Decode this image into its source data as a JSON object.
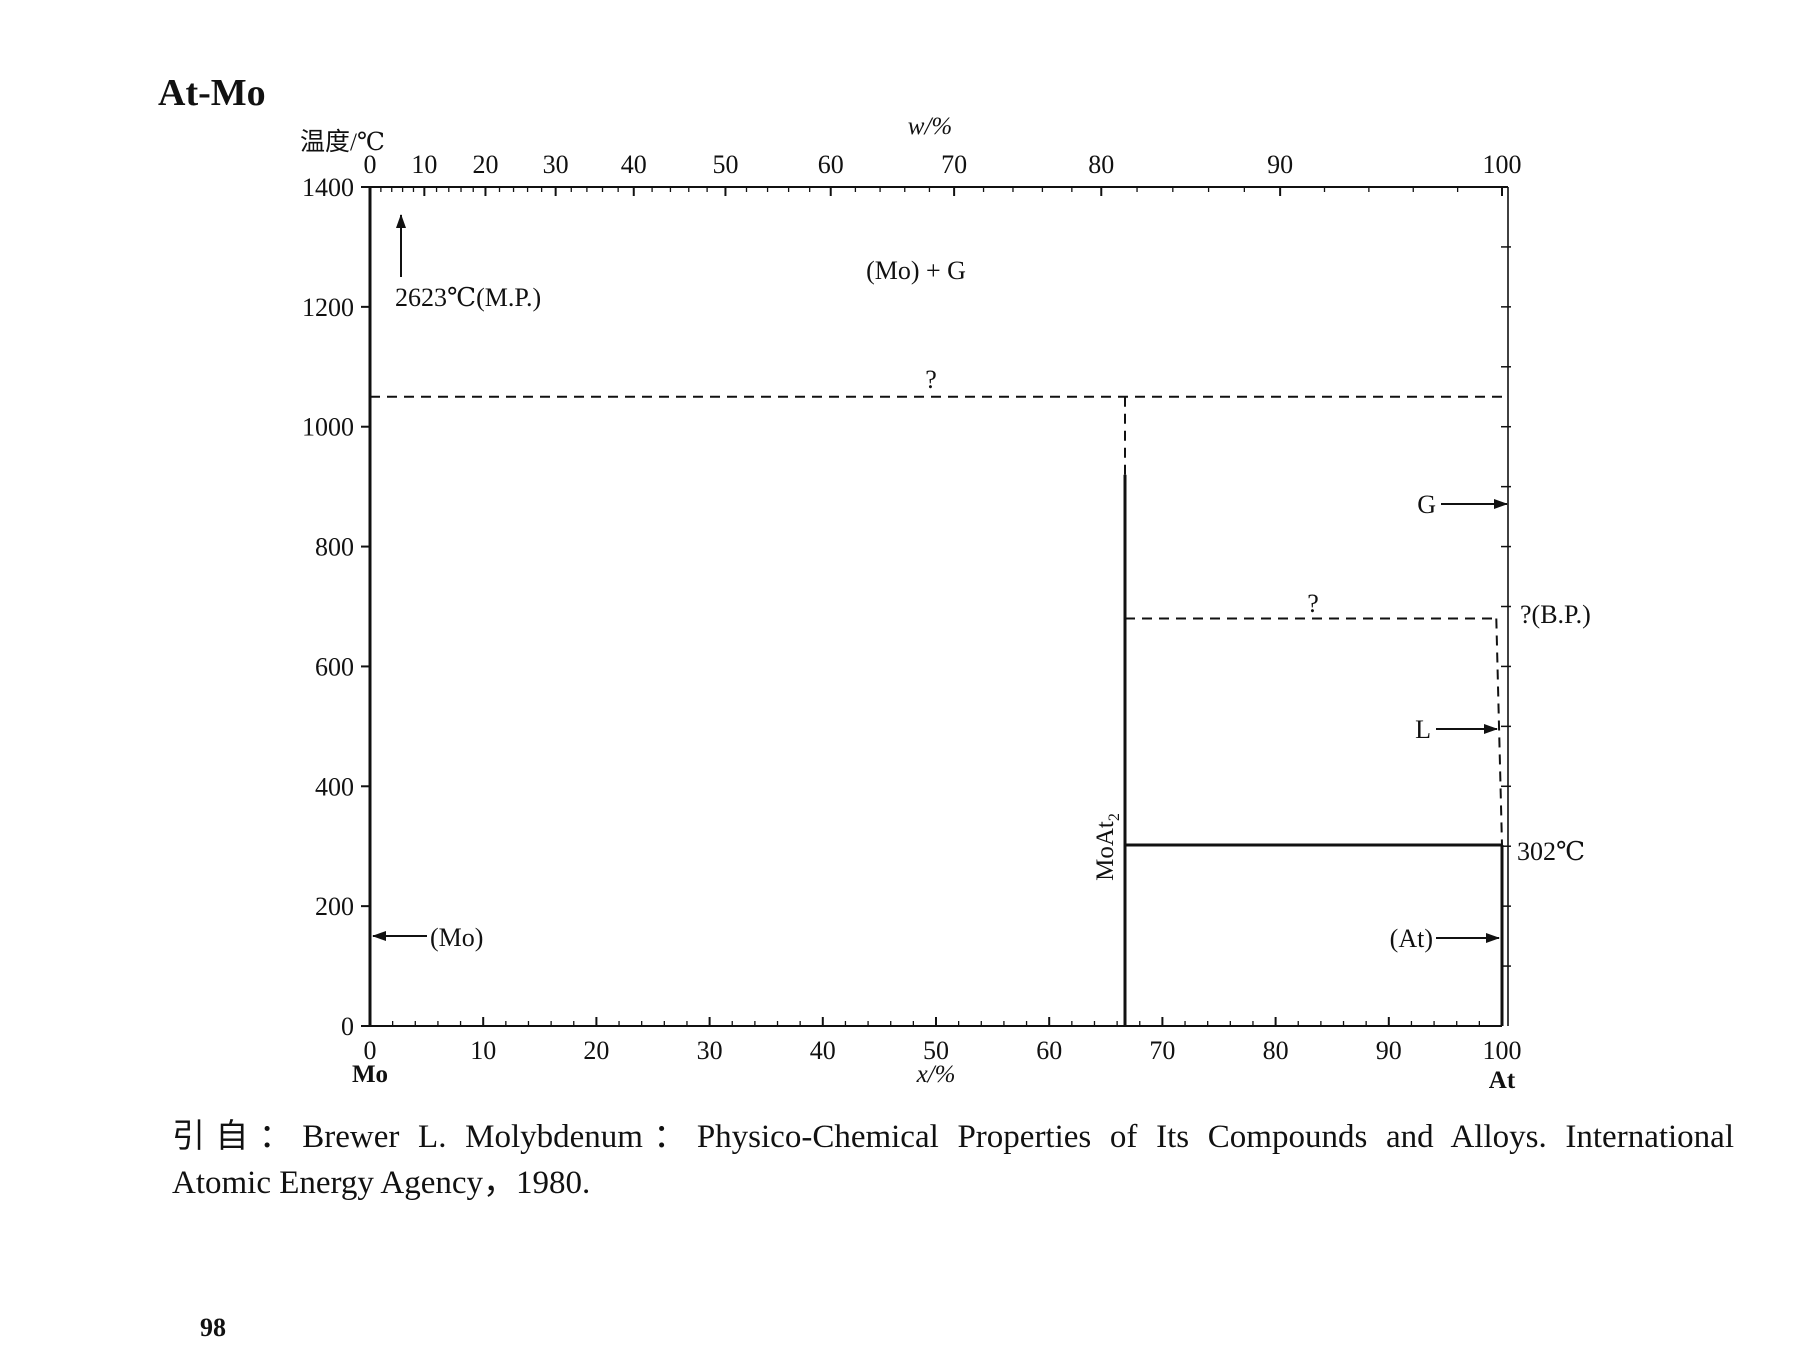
{
  "chart_data": {
    "type": "line",
    "title": "At-Mo",
    "ylabel": "温度/℃",
    "xlabel": "x/%",
    "x2label": "w/%",
    "xlim": [
      0,
      100
    ],
    "ylim": [
      0,
      1400
    ],
    "xticks": [
      0,
      10,
      20,
      30,
      40,
      50,
      60,
      70,
      80,
      90,
      100
    ],
    "yticks": [
      0,
      200,
      400,
      600,
      800,
      1000,
      1200,
      1400
    ],
    "x2ticks": [
      {
        "w": 0,
        "x": 0
      },
      {
        "w": 10,
        "x": 4.8
      },
      {
        "w": 20,
        "x": 10.2
      },
      {
        "w": 30,
        "x": 16.4
      },
      {
        "w": 40,
        "x": 23.3
      },
      {
        "w": 50,
        "x": 31.4
      },
      {
        "w": 60,
        "x": 40.7
      },
      {
        "w": 70,
        "x": 51.6
      },
      {
        "w": 80,
        "x": 64.6
      },
      {
        "w": 90,
        "x": 80.4
      },
      {
        "w": 100,
        "x": 100
      }
    ],
    "x_endpoints": {
      "left": "Mo",
      "right": "At"
    },
    "phase_boundaries": [
      {
        "dashed": true,
        "points": [
          [
            0,
            1050
          ],
          [
            100,
            1050
          ]
        ]
      },
      {
        "dashed": true,
        "points": [
          [
            66.7,
            1050
          ],
          [
            66.7,
            920
          ]
        ]
      },
      {
        "dashed": false,
        "points": [
          [
            66.7,
            920
          ],
          [
            66.7,
            0
          ]
        ]
      },
      {
        "dashed": true,
        "points": [
          [
            66.7,
            680
          ],
          [
            99.5,
            680
          ]
        ]
      },
      {
        "dashed": true,
        "points": [
          [
            99.5,
            680
          ],
          [
            100,
            302
          ]
        ]
      },
      {
        "dashed": false,
        "points": [
          [
            66.7,
            302
          ],
          [
            100,
            302
          ]
        ]
      },
      {
        "dashed": false,
        "points": [
          [
            100,
            302
          ],
          [
            100,
            0
          ]
        ]
      }
    ],
    "annotations": {
      "region_mo_g": "(Mo) + G",
      "mo_melting_point": "2623℃(M.P.)",
      "question_upper": "?",
      "question_lower": "?",
      "gas": "G",
      "boiling_point": "?(B.P.)",
      "liquid": "L",
      "at_melting_point": "302℃",
      "compound": {
        "base": "MoAt",
        "sub": "2"
      },
      "mo_solid": "(Mo)",
      "at_solid": "(At)"
    }
  },
  "caption": {
    "line1": "引自：Brewer L. Molybdenum：Physico-Chemical Properties of Its Compounds and Alloys. International",
    "line2": "Atomic Energy Agency，1980."
  },
  "page_number": "98"
}
